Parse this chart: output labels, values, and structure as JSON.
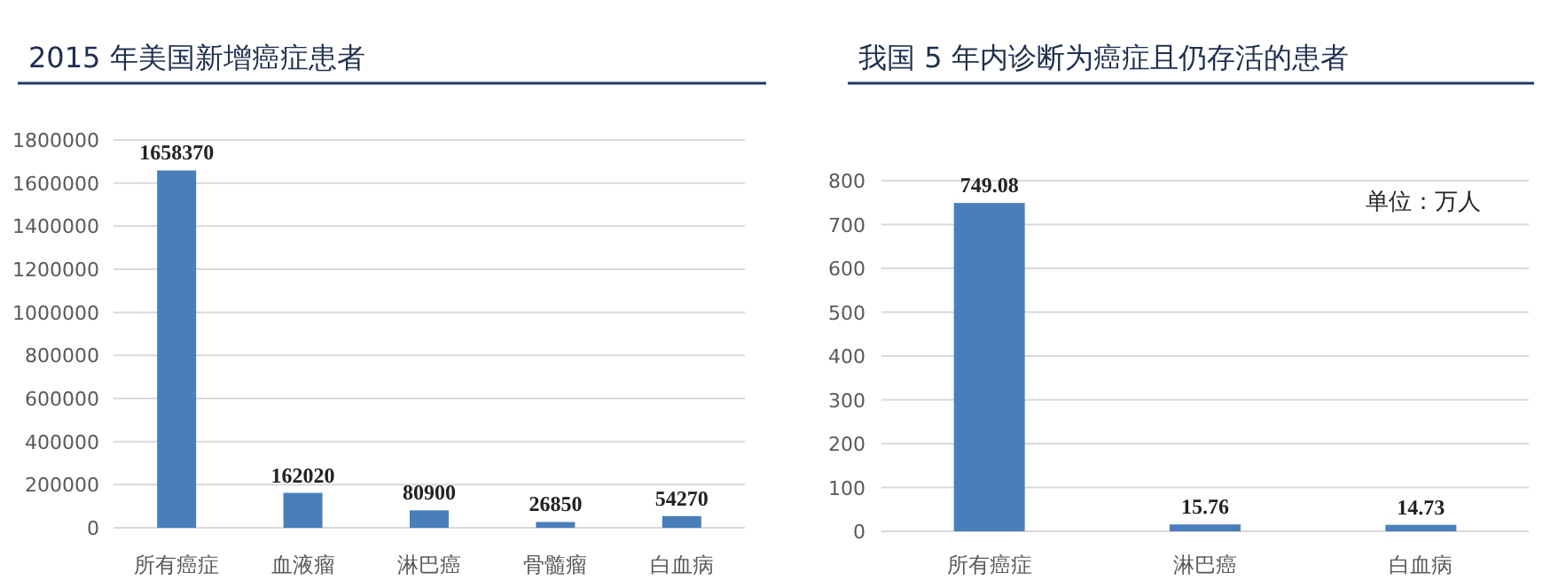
{
  "chart_data": [
    {
      "type": "bar",
      "title": "2015 年美国新增癌症患者",
      "categories": [
        "所有癌症",
        "血液瘤",
        "淋巴癌",
        "骨髓瘤",
        "白血病"
      ],
      "series": [
        {
          "color": "#4a7ebb",
          "values": [
            1658370,
            162020,
            80900,
            26850,
            54270
          ]
        }
      ],
      "ylim": [
        0,
        1800000
      ],
      "yticks": [
        0,
        200000,
        400000,
        600000,
        800000,
        1000000,
        1200000,
        1400000,
        1600000,
        1800000
      ],
      "grid": "y",
      "data_labels": true
    },
    {
      "type": "bar",
      "title": "我国 5 年内诊断为癌症且仍存活的患者",
      "categories": [
        "所有癌症",
        "淋巴癌",
        "白血病"
      ],
      "series": [
        {
          "color": "#4a7ebb",
          "values": [
            749.08,
            15.76,
            14.73
          ]
        }
      ],
      "ylim": [
        0,
        800
      ],
      "yticks": [
        0,
        100,
        200,
        300,
        400,
        500,
        600,
        700,
        800
      ],
      "grid": "y",
      "data_labels": true,
      "annotations": [
        "单位：万人"
      ]
    }
  ]
}
